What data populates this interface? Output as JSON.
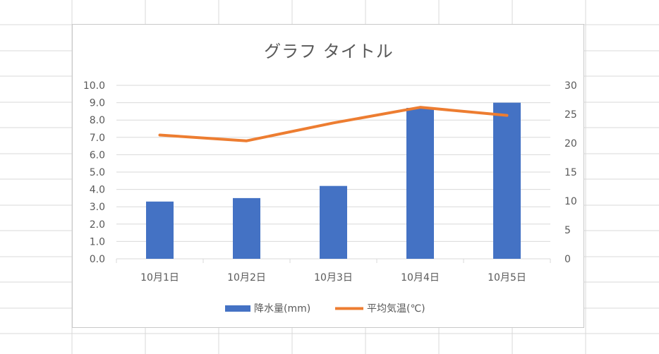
{
  "sheet": {
    "background": "#ffffff",
    "gridline_color": "#d9d9d9"
  },
  "chart_data": {
    "type": "bar",
    "title": "グラフ タイトル",
    "categories": [
      "10月1日",
      "10月2日",
      "10月3日",
      "10月4日",
      "10月5日"
    ],
    "series": [
      {
        "name": "降水量(mm)",
        "type": "bar",
        "axis": "left",
        "color": "#4472c4",
        "values": [
          3.3,
          3.5,
          4.2,
          8.7,
          9.0
        ]
      },
      {
        "name": "平均気温(℃)",
        "type": "line",
        "axis": "right",
        "color": "#ed7d31",
        "values": [
          21.4,
          20.4,
          23.5,
          26.2,
          24.8
        ]
      }
    ],
    "ylim_left": [
      0,
      10
    ],
    "yticks_left": [
      "0.0",
      "1.0",
      "2.0",
      "3.0",
      "4.0",
      "5.0",
      "6.0",
      "7.0",
      "8.0",
      "9.0",
      "10.0"
    ],
    "ylim_right": [
      0,
      30
    ],
    "yticks_right": [
      "0",
      "5",
      "10",
      "15",
      "20",
      "25",
      "30"
    ],
    "grid": true,
    "gridline_color": "#d9d9d9",
    "text_color": "#595959",
    "legend_position": "bottom"
  }
}
